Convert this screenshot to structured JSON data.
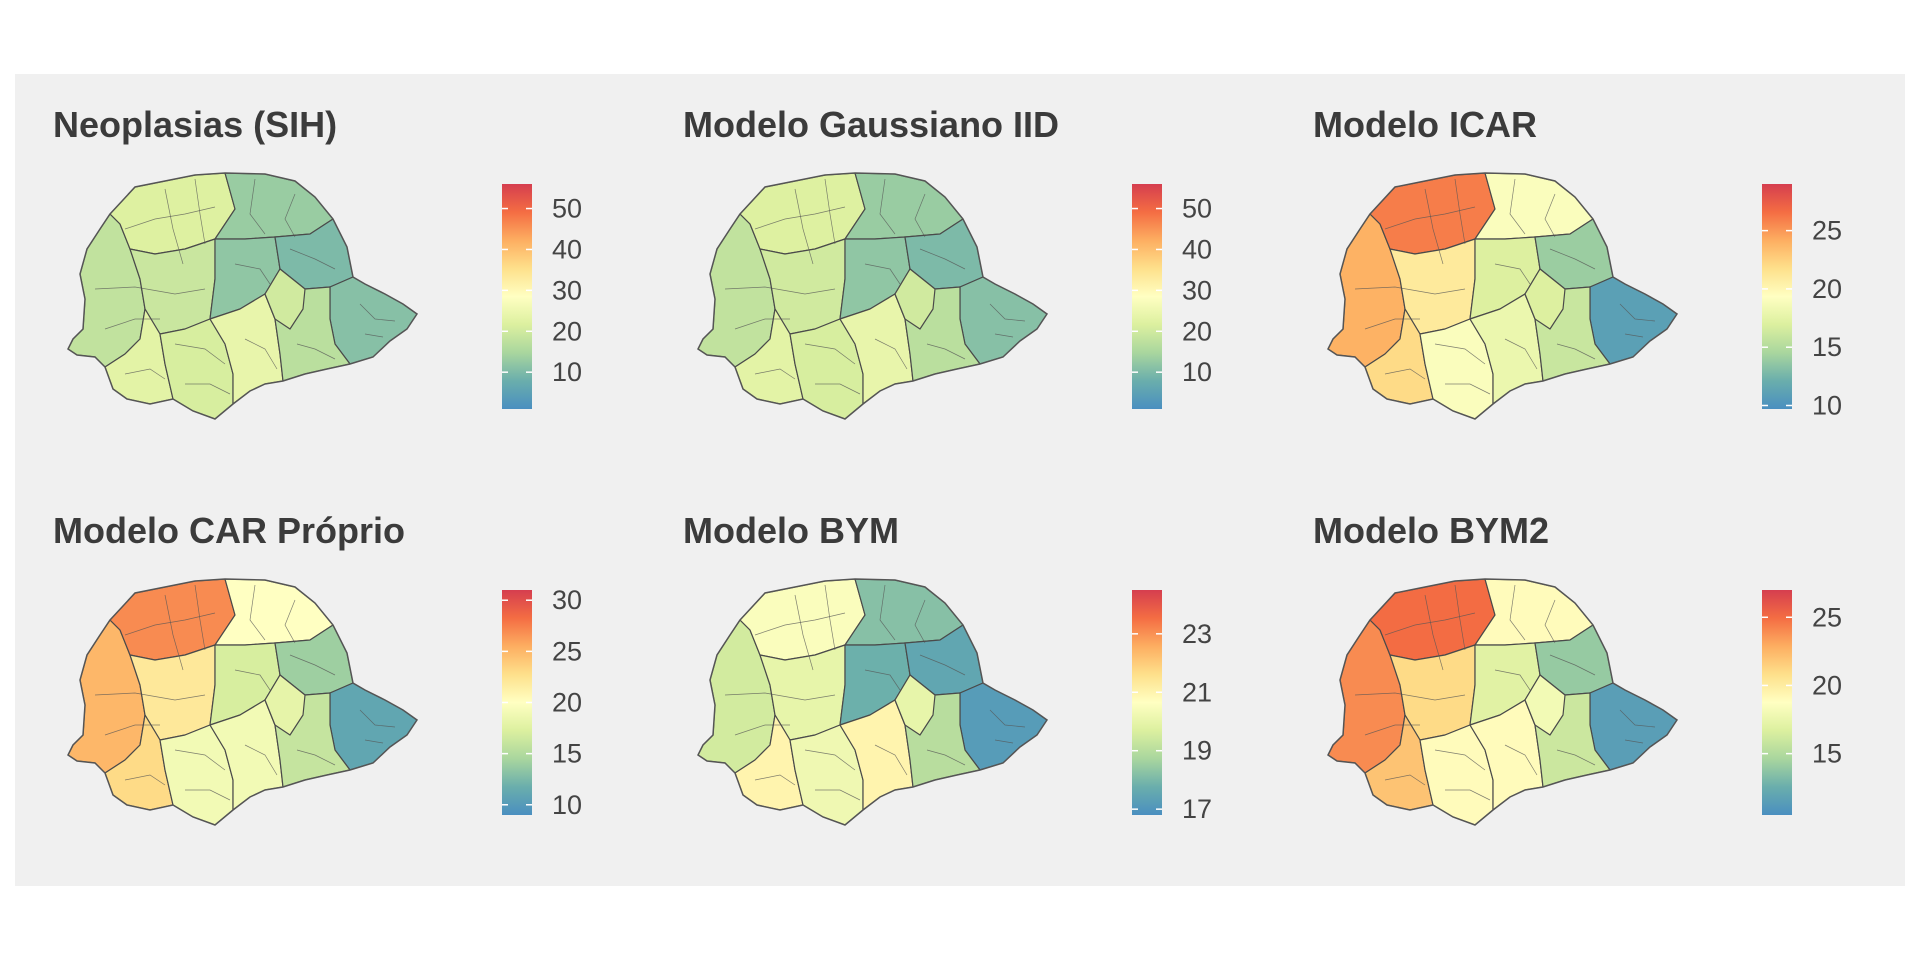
{
  "colors": {
    "scale": [
      "#4a8fc0",
      "#6aaeac",
      "#a9d69e",
      "#dcf09f",
      "#ffffc2",
      "#fee08b",
      "#fdae61",
      "#f46d43",
      "#d53e4f"
    ],
    "background": "#f0f0f0",
    "border": "#4a4a4a"
  },
  "panels": [
    {
      "title": "Neoplasias (SIH)",
      "legend": {
        "min": 1,
        "max": 56,
        "ticks": [
          10,
          20,
          30,
          40,
          50
        ]
      },
      "regions": {
        "A": 18,
        "B": 22,
        "C": 19,
        "D": 13,
        "E": 23,
        "F": 12,
        "G": 21,
        "H": 10,
        "I": 11,
        "J": 24,
        "K": 17,
        "L": 20
      }
    },
    {
      "title": "Modelo Gaussiano IID",
      "legend": {
        "min": 1,
        "max": 56,
        "ticks": [
          10,
          20,
          30,
          40,
          50
        ]
      },
      "regions": {
        "A": 18,
        "B": 22,
        "C": 20,
        "D": 13,
        "E": 23,
        "F": 12,
        "G": 21,
        "H": 10,
        "I": 11,
        "J": 24,
        "K": 17,
        "L": 20
      }
    },
    {
      "title": "Modelo ICAR",
      "legend": {
        "min": 9.7,
        "max": 29,
        "ticks": [
          10,
          15,
          20,
          25
        ]
      },
      "regions": {
        "A": 24,
        "B": 26,
        "C": 21,
        "D": 19,
        "E": 22,
        "F": 17,
        "G": 19,
        "H": 14,
        "I": 11,
        "J": 18,
        "K": 16,
        "L": 17
      }
    },
    {
      "title": "Modelo CAR Próprio",
      "legend": {
        "min": 9,
        "max": 31,
        "ticks": [
          10,
          15,
          20,
          25,
          30
        ]
      },
      "regions": {
        "A": 25,
        "B": 27,
        "C": 22,
        "D": 20,
        "E": 23,
        "F": 17,
        "G": 19,
        "H": 14,
        "I": 11,
        "J": 19,
        "K": 16,
        "L": 18
      }
    },
    {
      "title": "Modelo BYM",
      "legend": {
        "min": 16.8,
        "max": 24.5,
        "ticks": [
          17,
          19,
          21,
          23
        ]
      },
      "regions": {
        "A": 19.5,
        "B": 20.5,
        "C": 20,
        "D": 18.2,
        "E": 21,
        "F": 17.8,
        "G": 20.2,
        "H": 17.5,
        "I": 17.2,
        "J": 21,
        "K": 19,
        "L": 20
      }
    },
    {
      "title": "Modelo BYM2",
      "legend": {
        "min": 10.5,
        "max": 27,
        "ticks": [
          15,
          20,
          25
        ]
      },
      "regions": {
        "A": 24,
        "B": 25,
        "C": 21,
        "D": 19,
        "E": 22,
        "F": 17,
        "G": 19,
        "H": 14,
        "I": 11.5,
        "J": 19,
        "K": 16,
        "L": 18
      }
    }
  ]
}
